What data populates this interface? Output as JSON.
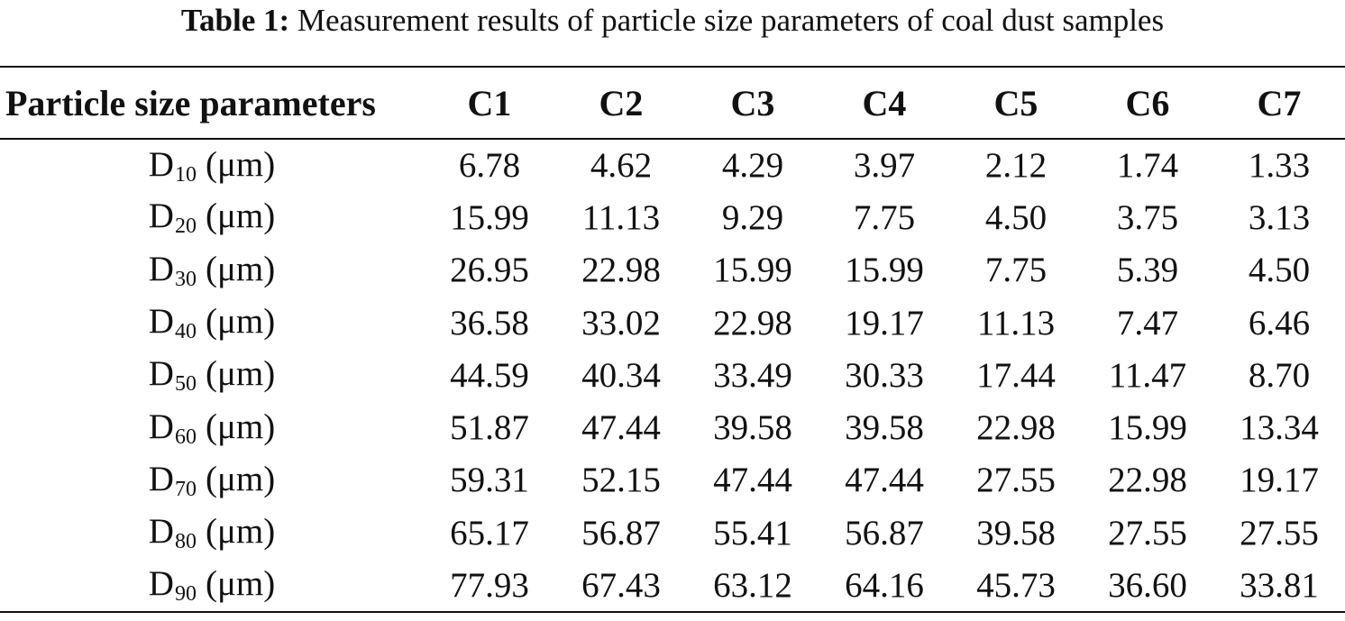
{
  "caption": {
    "label": "Table 1:",
    "text": "Measurement results of particle size parameters of coal dust samples"
  },
  "table": {
    "header": [
      "Particle size parameters",
      "C1",
      "C2",
      "C3",
      "C4",
      "C5",
      "C6",
      "C7"
    ],
    "rows": [
      {
        "symbol": "D",
        "subscript": "10",
        "unit": "(μm)",
        "values": [
          "6.78",
          "4.62",
          "4.29",
          "3.97",
          "2.12",
          "1.74",
          "1.33"
        ]
      },
      {
        "symbol": "D",
        "subscript": "20",
        "unit": "(μm)",
        "values": [
          "15.99",
          "11.13",
          "9.29",
          "7.75",
          "4.50",
          "3.75",
          "3.13"
        ]
      },
      {
        "symbol": "D",
        "subscript": "30",
        "unit": "(μm)",
        "values": [
          "26.95",
          "22.98",
          "15.99",
          "15.99",
          "7.75",
          "5.39",
          "4.50"
        ]
      },
      {
        "symbol": "D",
        "subscript": "40",
        "unit": "(μm)",
        "values": [
          "36.58",
          "33.02",
          "22.98",
          "19.17",
          "11.13",
          "7.47",
          "6.46"
        ]
      },
      {
        "symbol": "D",
        "subscript": "50",
        "unit": "(μm)",
        "values": [
          "44.59",
          "40.34",
          "33.49",
          "30.33",
          "17.44",
          "11.47",
          "8.70"
        ]
      },
      {
        "symbol": "D",
        "subscript": "60",
        "unit": "(μm)",
        "values": [
          "51.87",
          "47.44",
          "39.58",
          "39.58",
          "22.98",
          "15.99",
          "13.34"
        ]
      },
      {
        "symbol": "D",
        "subscript": "70",
        "unit": "(μm)",
        "values": [
          "59.31",
          "52.15",
          "47.44",
          "47.44",
          "27.55",
          "22.98",
          "19.17"
        ]
      },
      {
        "symbol": "D",
        "subscript": "80",
        "unit": "(μm)",
        "values": [
          "65.17",
          "56.87",
          "55.41",
          "56.87",
          "39.58",
          "27.55",
          "27.55"
        ]
      },
      {
        "symbol": "D",
        "subscript": "90",
        "unit": "(μm)",
        "values": [
          "77.93",
          "67.43",
          "63.12",
          "64.16",
          "45.73",
          "36.60",
          "33.81"
        ]
      }
    ]
  }
}
